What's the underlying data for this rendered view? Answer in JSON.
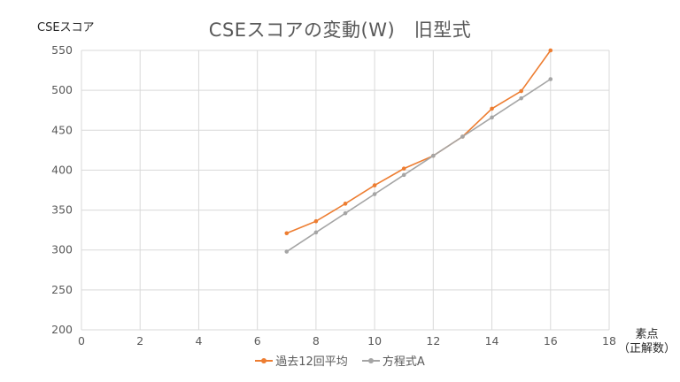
{
  "chart_data": {
    "type": "line",
    "title": "CSEスコアの変動(W)　旧型式",
    "ylabel": "CSEスコア",
    "xlabel": "素点\n（正解数）",
    "xlabel_line1": "素点",
    "xlabel_line2": "（正解数）",
    "xlim": [
      0,
      18
    ],
    "ylim": [
      200,
      550
    ],
    "x_ticks": [
      0,
      2,
      4,
      6,
      8,
      10,
      12,
      14,
      16,
      18
    ],
    "y_ticks": [
      200,
      250,
      300,
      350,
      400,
      450,
      500,
      550
    ],
    "grid": true,
    "legend_position": "bottom",
    "x": [
      7,
      8,
      9,
      10,
      11,
      12,
      13,
      14,
      15,
      16
    ],
    "series": [
      {
        "name": "過去12回平均",
        "color": "#ED7D31",
        "values": [
          321,
          336,
          358,
          381,
          402,
          418,
          442,
          477,
          499,
          550
        ]
      },
      {
        "name": "方程式A",
        "color": "#A5A5A5",
        "values": [
          298,
          322,
          346,
          370,
          394,
          418,
          442,
          466,
          490,
          514
        ]
      }
    ]
  }
}
